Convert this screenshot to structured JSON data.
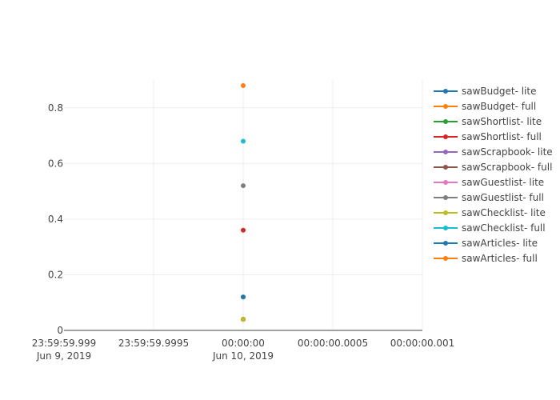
{
  "chart_data": {
    "type": "scatter",
    "title": "",
    "xlabel": "",
    "ylabel": "",
    "xlim": [
      "2019-06-09T23:59:59.999",
      "2019-06-10T00:00:00.001"
    ],
    "ylim": [
      0,
      0.9
    ],
    "x_ticks": [
      {
        "line1": "23:59:59.999",
        "line2": "Jun 9, 2019"
      },
      {
        "line1": "23:59:59.9995",
        "line2": ""
      },
      {
        "line1": "00:00:00",
        "line2": "Jun 10, 2019"
      },
      {
        "line1": "00:00:00.0005",
        "line2": ""
      },
      {
        "line1": "00:00:00.001",
        "line2": ""
      }
    ],
    "y_ticks": [
      "0",
      "0.2",
      "0.4",
      "0.6",
      "0.8"
    ],
    "y_tick_values": [
      0,
      0.2,
      0.4,
      0.6,
      0.8
    ],
    "grid": true,
    "legend_position": "right",
    "series": [
      {
        "name": "sawBudget- lite",
        "color": "#1f77b4",
        "x": "2019-06-10T00:00:00",
        "y": 0.04
      },
      {
        "name": "sawBudget- full",
        "color": "#ff7f0e",
        "x": "2019-06-10T00:00:00",
        "y": 0.12
      },
      {
        "name": "sawShortlist- lite",
        "color": "#2ca02c",
        "x": "2019-06-10T00:00:00",
        "y": 0.04
      },
      {
        "name": "sawShortlist- full",
        "color": "#d62728",
        "x": "2019-06-10T00:00:00",
        "y": 0.36
      },
      {
        "name": "sawScrapbook- lite",
        "color": "#9467bd",
        "x": "2019-06-10T00:00:00",
        "y": 0.04
      },
      {
        "name": "sawScrapbook- full",
        "color": "#8c564b",
        "x": "2019-06-10T00:00:00",
        "y": 0.04
      },
      {
        "name": "sawGuestlist- lite",
        "color": "#e377c2",
        "x": "2019-06-10T00:00:00",
        "y": 0.04
      },
      {
        "name": "sawGuestlist- full",
        "color": "#7f7f7f",
        "x": "2019-06-10T00:00:00",
        "y": 0.52
      },
      {
        "name": "sawChecklist- lite",
        "color": "#bcbd22",
        "x": "2019-06-10T00:00:00",
        "y": 0.04
      },
      {
        "name": "sawChecklist- full",
        "color": "#17becf",
        "x": "2019-06-10T00:00:00",
        "y": 0.68
      },
      {
        "name": "sawArticles- lite",
        "color": "#1f77b4",
        "x": "2019-06-10T00:00:00",
        "y": 0.12
      },
      {
        "name": "sawArticles- full",
        "color": "#ff7f0e",
        "x": "2019-06-10T00:00:00",
        "y": 0.88
      }
    ]
  }
}
